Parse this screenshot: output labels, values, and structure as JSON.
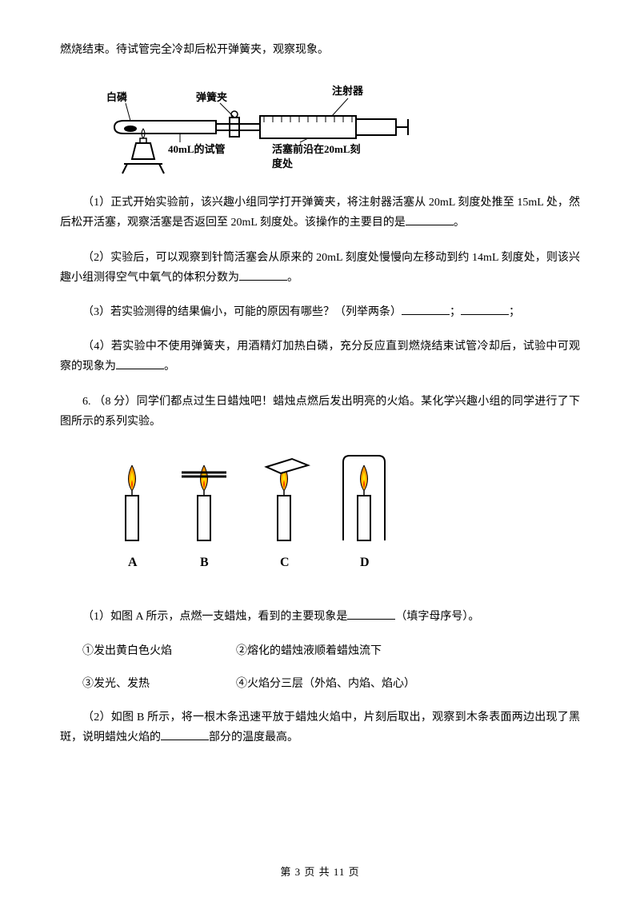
{
  "intro": "燃烧结束。待试管完全冷却后松开弹簧夹，观察现象。",
  "apparatus": {
    "label_phosphorus": "白磷",
    "label_clip": "弹簧夹",
    "label_syringe": "注射器",
    "label_tube": "40mL的试管",
    "label_piston": "活塞前沿在20mL刻",
    "label_piston2": "度处",
    "stroke": "#000000",
    "fill_bg": "#ffffff",
    "font_size": 13
  },
  "q1": {
    "text1": "（1）正式开始实验前，该兴趣小组同学打开弹簧夹，将注射器活塞从 20mL 刻度处推至 15mL 处，然后松开活塞，观察活塞是否返回至 20mL 刻度处。该操作的主要目的是",
    "text2": "。"
  },
  "q2": {
    "text1": "（2）实验后，可以观察到针筒活塞会从原来的 20mL 刻度处慢慢向左移动到约 14mL 刻度处，则该兴趣小组测得空气中氧气的体积分数为",
    "text2": "。"
  },
  "q3": {
    "text1": "（3）若实验测得的结果偏小，可能的原因有哪些？（列举两条）",
    "text2": "；",
    "text3": "；"
  },
  "q4": {
    "text1": "（4）若实验中不使用弹簧夹，用酒精灯加热白磷，充分反应直到燃烧结束试管冷却后，试验中可观察的现象为",
    "text2": "。"
  },
  "q6_header": "6. （8 分）同学们都点过生日蜡烛吧！蜡烛点燃后发出明亮的火焰。某化学兴趣小组的同学进行了下图所示的系列实验。",
  "candles": {
    "labels": [
      "A",
      "B",
      "C",
      "D"
    ],
    "stroke": "#000000",
    "flame_outer": "#ff9900",
    "flame_inner": "#ffdd00",
    "flame_core": "#ff3300"
  },
  "q6_1": {
    "text1": "（1）如图 A 所示，点燃一支蜡烛，看到的主要现象是",
    "text2": "（填字母序号）。",
    "opts": {
      "o1": "①发出黄白色火焰",
      "o2": "②熔化的蜡烛液顺着蜡烛流下",
      "o3": "③发光、发热",
      "o4": "④火焰分三层（外焰、内焰、焰心）"
    }
  },
  "q6_2": {
    "text1": "（2）如图 B 所示，将一根木条迅速平放于蜡烛火焰中，片刻后取出，观察到木条表面两边出现了黑斑，说明蜡烛火焰的",
    "text2": "部分的温度最高。"
  },
  "footer": "第 3 页 共 11 页"
}
